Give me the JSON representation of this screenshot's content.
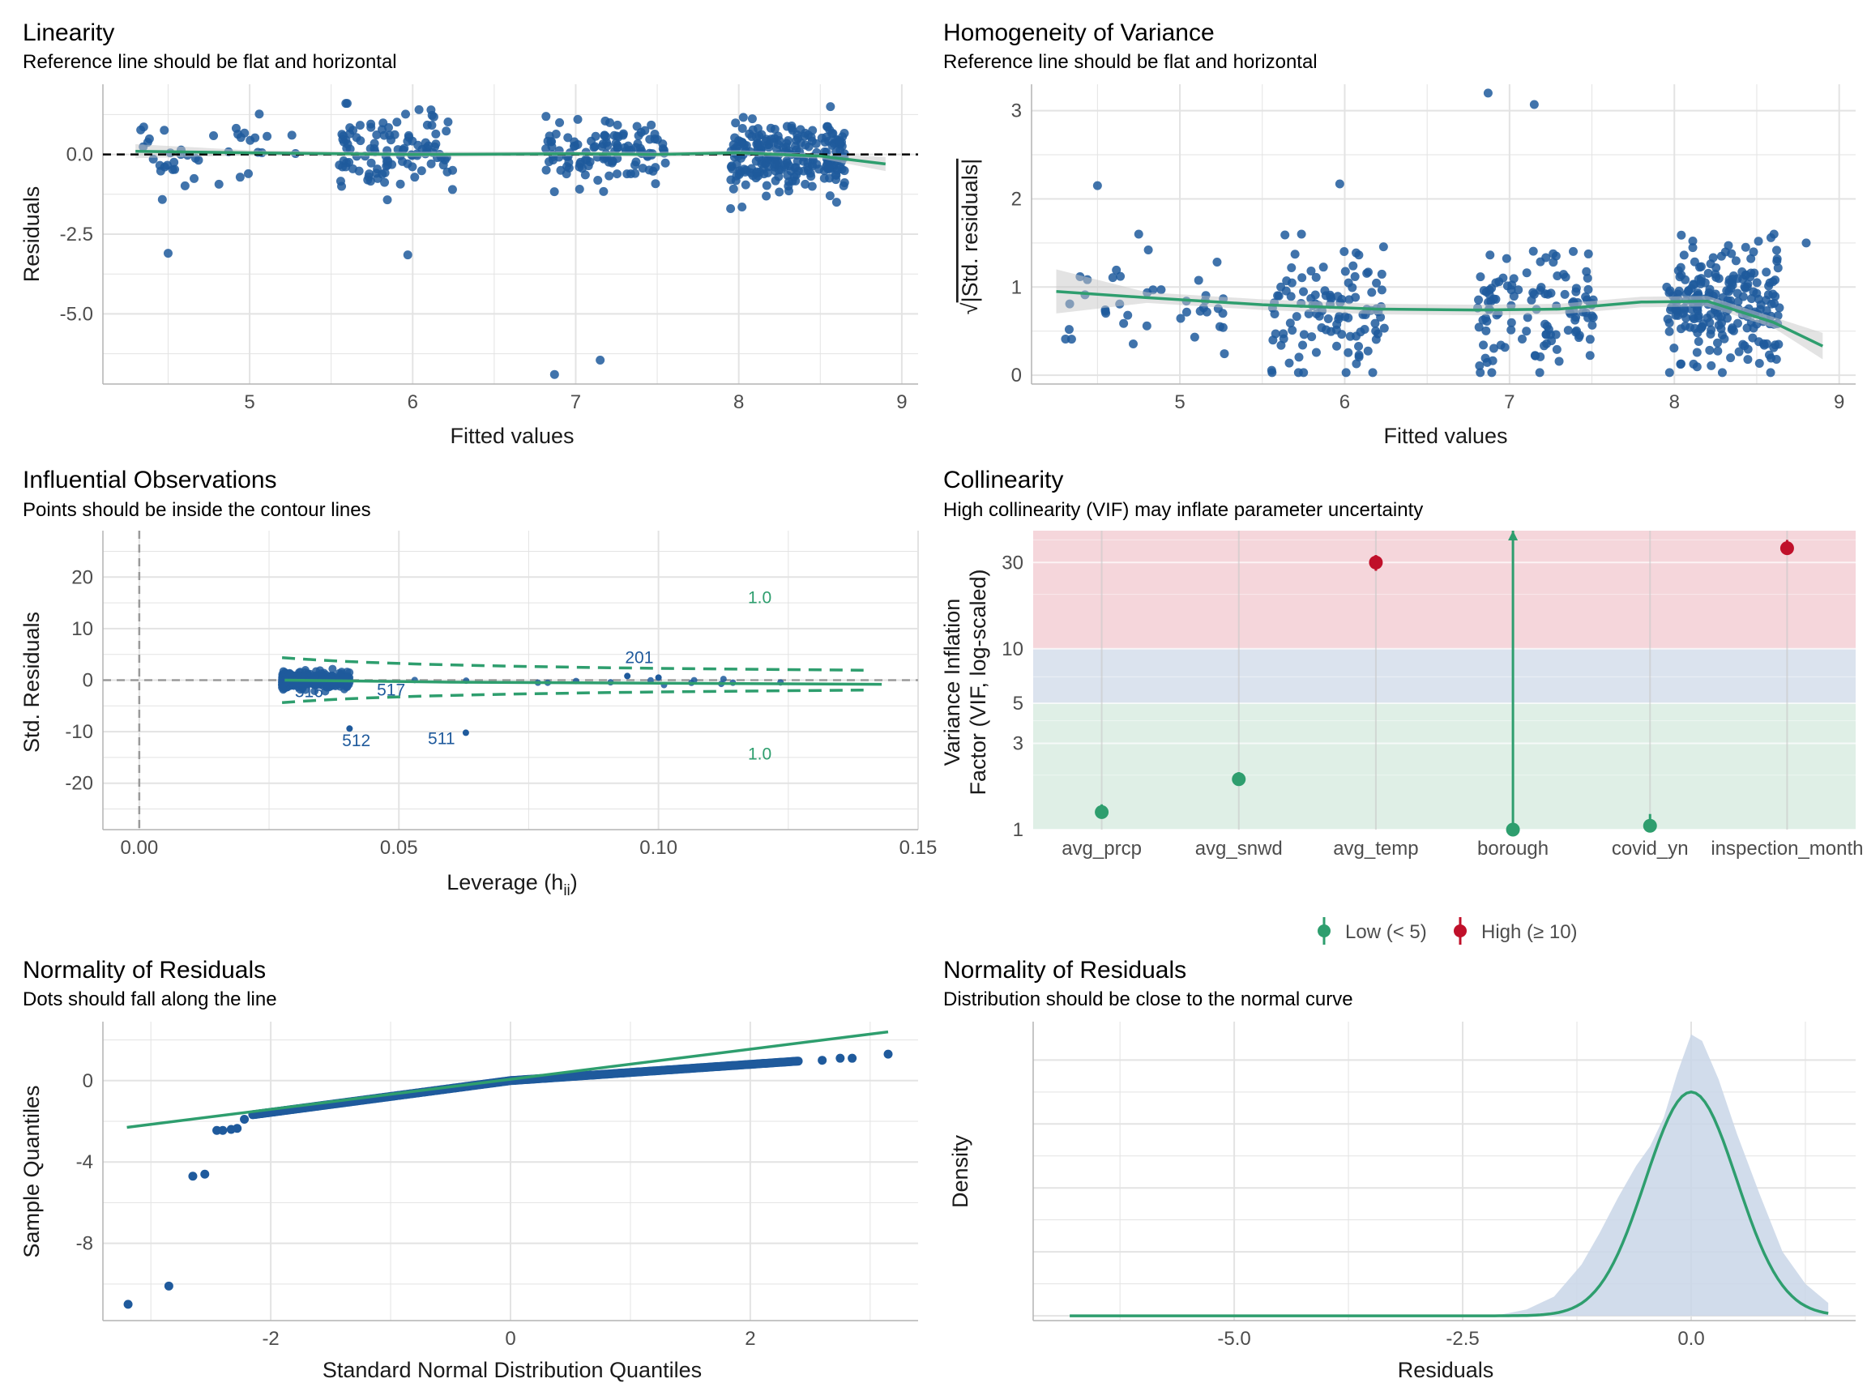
{
  "colors": {
    "points": "#1f5a9c",
    "smooth": "#2e9e6e",
    "reference": "#000000",
    "band": "#c8c8c8",
    "grid": "#e3e3e3",
    "high_zone": "#f5d6db",
    "moderate_zone": "#dbe3ee",
    "low_zone": "#dfefe6",
    "low_point": "#2e9e6e",
    "high_point": "#c0102a",
    "density_fill": "#c9d6e7"
  },
  "chart_data": [
    {
      "type": "scatter",
      "title": "Linearity",
      "subtitle": "Reference line should be flat and horizontal",
      "xlabel": "Fitted values",
      "ylabel": "Residuals",
      "xlim": [
        4.1,
        9.1
      ],
      "ylim": [
        -7.2,
        2.2
      ],
      "xticks": [
        5,
        6,
        7,
        8,
        9
      ],
      "yticks": [
        0.0,
        -2.5,
        -5.0
      ],
      "ytick_labels": [
        "0.0",
        "-2.5",
        "-5.0"
      ],
      "reference_line": 0,
      "clusters": [
        {
          "x_range": [
            4.3,
            5.3
          ],
          "y_mean": 0.1,
          "y_sd": 0.6,
          "n": 40
        },
        {
          "x_range": [
            5.55,
            6.25
          ],
          "y_mean": 0.1,
          "y_sd": 0.6,
          "n": 110
        },
        {
          "x_range": [
            6.8,
            7.55
          ],
          "y_mean": 0.1,
          "y_sd": 0.55,
          "n": 120
        },
        {
          "x_range": [
            7.95,
            8.65
          ],
          "y_mean": -0.05,
          "y_sd": 0.55,
          "n": 230
        }
      ],
      "outliers": [
        [
          4.5,
          -3.1
        ],
        [
          5.97,
          -3.15
        ],
        [
          6.87,
          -6.9
        ],
        [
          7.15,
          -6.45
        ],
        [
          7.95,
          -1.7
        ],
        [
          8.6,
          -1.5
        ],
        [
          8.02,
          -1.65
        ]
      ],
      "smooth": [
        [
          4.3,
          0.1
        ],
        [
          5.0,
          0.05
        ],
        [
          6.0,
          0.0
        ],
        [
          7.0,
          0.02
        ],
        [
          7.5,
          0.0
        ],
        [
          8.0,
          0.05
        ],
        [
          8.5,
          -0.05
        ],
        [
          8.9,
          -0.3
        ]
      ]
    },
    {
      "type": "scatter",
      "title": "Homogeneity of Variance",
      "subtitle": "Reference line should be flat and horizontal",
      "xlabel": "Fitted values",
      "ylabel": "√|Std. residuals|",
      "ylabel_root": "√",
      "ylabel_text": "|Std. residuals|",
      "xlim": [
        4.1,
        9.1
      ],
      "ylim": [
        -0.1,
        3.3
      ],
      "xticks": [
        5,
        6,
        7,
        8,
        9
      ],
      "yticks": [
        0,
        1,
        2,
        3
      ],
      "clusters": [
        {
          "x_range": [
            4.3,
            5.3
          ],
          "y_mean": 0.8,
          "y_sd": 0.3,
          "n": 40
        },
        {
          "x_range": [
            5.55,
            6.25
          ],
          "y_mean": 0.75,
          "y_sd": 0.35,
          "n": 110
        },
        {
          "x_range": [
            6.8,
            7.55
          ],
          "y_mean": 0.75,
          "y_sd": 0.35,
          "n": 120
        },
        {
          "x_range": [
            7.95,
            8.65
          ],
          "y_mean": 0.8,
          "y_sd": 0.35,
          "n": 230
        }
      ],
      "outliers": [
        [
          4.5,
          2.15
        ],
        [
          5.97,
          2.17
        ],
        [
          6.87,
          3.2
        ],
        [
          7.15,
          3.07
        ],
        [
          8.8,
          1.5
        ]
      ],
      "smooth": [
        [
          4.25,
          0.95
        ],
        [
          4.8,
          0.88
        ],
        [
          5.5,
          0.8
        ],
        [
          6.2,
          0.75
        ],
        [
          6.8,
          0.74
        ],
        [
          7.3,
          0.75
        ],
        [
          7.8,
          0.83
        ],
        [
          8.2,
          0.84
        ],
        [
          8.6,
          0.6
        ],
        [
          8.9,
          0.33
        ]
      ]
    },
    {
      "type": "scatter",
      "title": "Influential Observations",
      "subtitle": "Points should be inside the contour lines",
      "xlabel": "Leverage (hii)",
      "xlabel_main": "Leverage (h",
      "xlabel_sub": "ii",
      "xlabel_close": ")",
      "ylabel": "Std. Residuals",
      "xlim": [
        -0.007,
        0.15
      ],
      "ylim": [
        -29,
        29
      ],
      "xticks": [
        0.0,
        0.05,
        0.1,
        0.15
      ],
      "xtick_labels": [
        "0.00",
        "0.05",
        "0.10",
        "0.15"
      ],
      "yticks": [
        20,
        10,
        0,
        -10,
        -20
      ],
      "contour_label": "1.0",
      "point_labels": [
        {
          "text": "201",
          "x": 0.0963,
          "y": 3.3
        },
        {
          "text": "516",
          "x": 0.0327,
          "y": -3.3
        },
        {
          "text": "517",
          "x": 0.0485,
          "y": -3.0
        },
        {
          "text": "512",
          "x": 0.0418,
          "y": -12.8
        },
        {
          "text": "511",
          "x": 0.0582,
          "y": -12.4
        }
      ],
      "outliers": [
        [
          0.0405,
          -9.4
        ],
        [
          0.0629,
          -10.2
        ],
        [
          0.094,
          0.8
        ],
        [
          0.1,
          0.5
        ]
      ],
      "smooth": [
        [
          0.028,
          0.0
        ],
        [
          0.06,
          -0.4
        ],
        [
          0.1,
          -0.6
        ],
        [
          0.143,
          -0.8
        ]
      ]
    },
    {
      "type": "scatter",
      "title": "Collinearity",
      "subtitle": "High collinearity (VIF) may inflate parameter uncertainty",
      "xlabel": "",
      "ylabel_line1": "Variance Inflation",
      "ylabel_line2": "Factor (VIF, log-scaled)",
      "log_scale": true,
      "ylim": [
        1,
        45
      ],
      "yticks": [
        1,
        3,
        5,
        10,
        30
      ],
      "categories": [
        "avg_prcp",
        "avg_snwd",
        "avg_temp",
        "borough",
        "covid_yn",
        "inspection_month"
      ],
      "values": [
        1.25,
        1.9,
        30,
        1.0,
        1.05,
        36
      ],
      "ci_low": [
        1.15,
        1.75,
        27,
        1.0,
        1.0,
        33
      ],
      "ci_high": [
        1.38,
        2.08,
        33,
        45,
        1.22,
        40
      ],
      "levels": [
        "low",
        "low",
        "high",
        "low",
        "low",
        "high"
      ],
      "legend": [
        "Low (< 5)",
        "High (≥ 10)"
      ],
      "legend_position": "bottom"
    },
    {
      "type": "scatter",
      "title": "Normality of Residuals",
      "subtitle": "Dots should fall along the line",
      "xlabel": "Standard Normal Distribution Quantiles",
      "ylabel": "Sample Quantiles",
      "xlim": [
        -3.4,
        3.4
      ],
      "ylim": [
        -11.8,
        2.9
      ],
      "xticks": [
        -2,
        0,
        2
      ],
      "yticks": [
        0,
        -4,
        -8
      ],
      "reference_line": [
        [
          -3.2,
          -2.3
        ],
        [
          3.15,
          2.4
        ]
      ],
      "tail_points": [
        [
          -3.19,
          -11.0
        ],
        [
          -2.85,
          -10.1
        ],
        [
          -2.65,
          -4.7
        ],
        [
          -2.55,
          -4.6
        ],
        [
          -2.45,
          -2.45
        ],
        [
          -2.4,
          -2.45
        ],
        [
          -2.33,
          -2.4
        ],
        [
          -2.28,
          -2.35
        ],
        [
          -2.22,
          -1.9
        ],
        [
          2.6,
          1.0
        ],
        [
          2.75,
          1.1
        ],
        [
          2.85,
          1.1
        ],
        [
          3.15,
          1.3
        ]
      ]
    },
    {
      "type": "area",
      "title": "Normality of Residuals",
      "subtitle": "Distribution should be close to the normal curve",
      "xlabel": "Residuals",
      "ylabel": "Density",
      "xlim": [
        -7.2,
        1.8
      ],
      "xticks": [
        -5.0,
        -2.5,
        0.0
      ],
      "xtick_labels": [
        "-5.0",
        "-2.5",
        "0.0"
      ],
      "density": [
        [
          -2.15,
          0.0
        ],
        [
          -1.8,
          0.02
        ],
        [
          -1.5,
          0.06
        ],
        [
          -1.2,
          0.16
        ],
        [
          -1.0,
          0.26
        ],
        [
          -0.8,
          0.37
        ],
        [
          -0.6,
          0.47
        ],
        [
          -0.45,
          0.53
        ],
        [
          -0.3,
          0.62
        ],
        [
          -0.15,
          0.76
        ],
        [
          0.0,
          0.88
        ],
        [
          0.12,
          0.86
        ],
        [
          0.3,
          0.74
        ],
        [
          0.5,
          0.57
        ],
        [
          0.75,
          0.38
        ],
        [
          1.0,
          0.2
        ],
        [
          1.25,
          0.1
        ],
        [
          1.5,
          0.04
        ]
      ],
      "normal_mean": 0.0,
      "normal_sd": 0.5,
      "normal_peak": 0.7,
      "normal_x_range": [
        -6.8,
        1.5
      ]
    }
  ]
}
